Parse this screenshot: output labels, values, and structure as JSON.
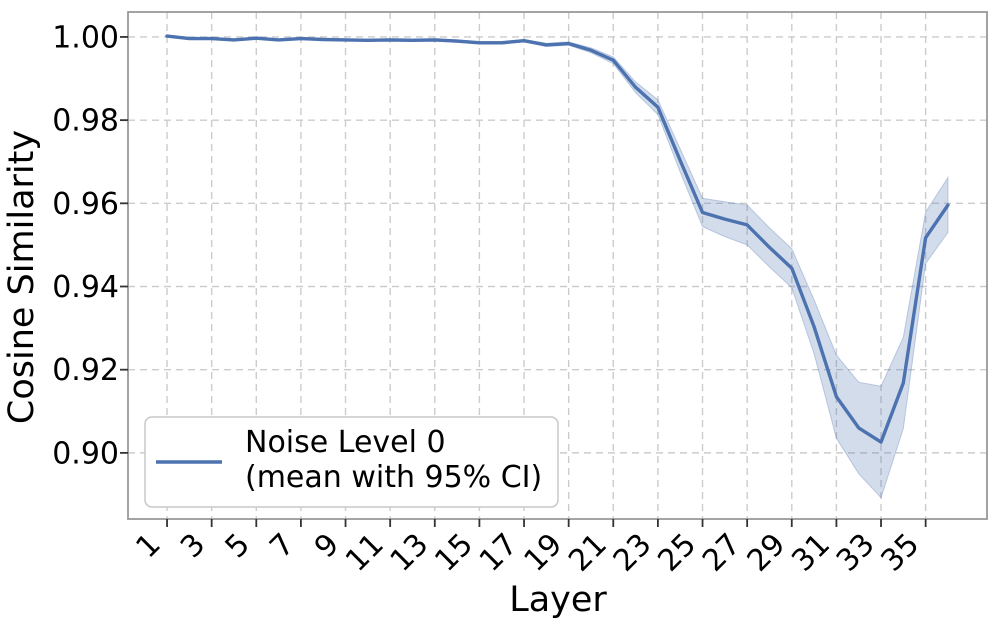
{
  "chart_data": {
    "type": "line",
    "title": "",
    "xlabel": "Layer",
    "ylabel": "Cosine Similarity",
    "grid": true,
    "legend": {
      "lines": [
        "Noise Level 0",
        "(mean with 95% CI)"
      ],
      "position": "lower left"
    },
    "x": [
      1,
      2,
      3,
      4,
      5,
      6,
      7,
      8,
      9,
      10,
      11,
      12,
      13,
      14,
      15,
      16,
      17,
      18,
      19,
      20,
      21,
      22,
      23,
      24,
      25,
      26,
      27,
      28,
      29,
      30,
      31,
      32,
      33,
      34,
      35,
      36
    ],
    "xticks": [
      1,
      3,
      5,
      7,
      9,
      11,
      13,
      15,
      17,
      19,
      21,
      23,
      25,
      27,
      29,
      31,
      33,
      35
    ],
    "yticks": [
      1.0,
      0.98,
      0.96,
      0.94,
      0.92,
      0.9
    ],
    "ytick_labels": [
      "1.00",
      "0.98",
      "0.96",
      "0.94",
      "0.92",
      "0.90"
    ],
    "xlim": [
      -0.75,
      37.75
    ],
    "ylim": [
      0.8841,
      1.006
    ],
    "series": [
      {
        "name": "Noise Level 0 (mean with 95% CI)",
        "mean": [
          1.0002,
          0.9996,
          0.9996,
          0.9993,
          0.9997,
          0.9993,
          0.9996,
          0.9994,
          0.9993,
          0.9992,
          0.9993,
          0.9992,
          0.9993,
          0.999,
          0.9986,
          0.9986,
          0.9991,
          0.9981,
          0.9984,
          0.9968,
          0.9944,
          0.9879,
          0.9831,
          0.9703,
          0.9578,
          0.9562,
          0.9548,
          0.9494,
          0.9444,
          0.9303,
          0.9135,
          0.906,
          0.9026,
          0.9168,
          0.9517,
          0.9596
        ],
        "ci_halfwidth": [
          0.0002,
          0.0002,
          0.0002,
          0.0002,
          0.0002,
          0.0002,
          0.0002,
          0.0002,
          0.0002,
          0.0002,
          0.0003,
          0.0003,
          0.0003,
          0.0003,
          0.0003,
          0.0003,
          0.0003,
          0.0004,
          0.0004,
          0.0006,
          0.0008,
          0.0013,
          0.0018,
          0.0028,
          0.0034,
          0.0042,
          0.0048,
          0.0047,
          0.0047,
          0.0065,
          0.01,
          0.011,
          0.0134,
          0.011,
          0.0062,
          0.0066
        ],
        "color": "#4c72b0",
        "band_opacity": 0.25
      }
    ],
    "colors": {
      "line": "#4c72b0",
      "band": "#4c72b0",
      "grid": "#cccccc",
      "spine": "#999999",
      "tick": "#333333",
      "text": "#000000",
      "legend_border": "#c8c8c8",
      "background": "#ffffff"
    }
  }
}
